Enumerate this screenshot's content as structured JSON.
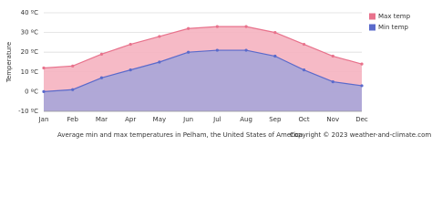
{
  "chart_data": {
    "type": "area",
    "caption": "Average min and max temperatures in Pelham, the United States of America",
    "copyright": "Copyright © 2023  weather-and-climate.com",
    "y_label": "Temperature",
    "categories": [
      "Jan",
      "Feb",
      "Mar",
      "Apr",
      "May",
      "Jun",
      "Jul",
      "Aug",
      "Sep",
      "Oct",
      "Nov",
      "Dec"
    ],
    "series": [
      {
        "name": "Max temp",
        "color": "#e8728c",
        "fill": "#f5b3c0",
        "values": [
          12,
          13,
          19,
          24,
          28,
          32,
          33,
          33,
          30,
          24,
          18,
          14
        ]
      },
      {
        "name": "Min temp",
        "color": "#5a6acb",
        "fill": "#a8a6d8",
        "values": [
          0,
          1,
          7,
          11,
          15,
          20,
          21,
          21,
          18,
          11,
          5,
          3
        ]
      }
    ],
    "ylim": [
      -10,
      40
    ],
    "yticks": [
      {
        "value": -10,
        "label": "-10 ºC"
      },
      {
        "value": 0,
        "label": "0 ºC"
      },
      {
        "value": 10,
        "label": "10 ºC"
      },
      {
        "value": 20,
        "label": "20 ºC"
      },
      {
        "value": 30,
        "label": "30 ºC"
      },
      {
        "value": 40,
        "label": "40 ºC"
      }
    ],
    "grid": true,
    "legend": "top-right"
  }
}
